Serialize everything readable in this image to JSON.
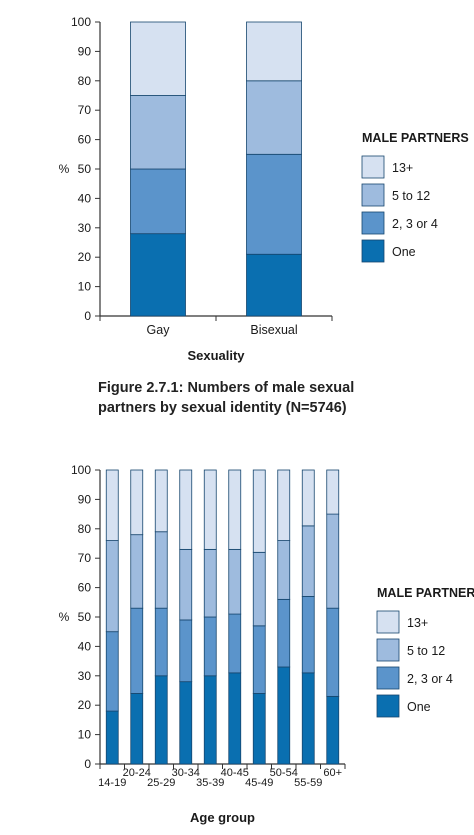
{
  "chart_data": [
    {
      "type": "bar",
      "stacked": true,
      "caption_line1": "Figure 2.7.1: Numbers of male sexual",
      "caption_line2": "partners by sexual identity (N=5746)",
      "xlabel": "Sexuality",
      "ylabel": "%",
      "ylim": [
        0,
        100
      ],
      "yticks": [
        0,
        10,
        20,
        30,
        40,
        50,
        60,
        70,
        80,
        90,
        100
      ],
      "legend_title": "MALE PARTNERS",
      "legend_position": "right",
      "categories": [
        "Gay",
        "Bisexual"
      ],
      "series": [
        {
          "name": "One",
          "color": "#0a6fb0",
          "values": [
            28,
            21
          ]
        },
        {
          "name": "2, 3 or 4",
          "color": "#5b94cb",
          "values": [
            22,
            34
          ]
        },
        {
          "name": "5 to 12",
          "color": "#9ebbde",
          "values": [
            25,
            25
          ]
        },
        {
          "name": "13+",
          "color": "#d6e1f1",
          "values": [
            25,
            20
          ]
        }
      ]
    },
    {
      "type": "bar",
      "stacked": true,
      "xlabel": "Age group",
      "ylabel": "%",
      "ylim": [
        0,
        100
      ],
      "yticks": [
        0,
        10,
        20,
        30,
        40,
        50,
        60,
        70,
        80,
        90,
        100
      ],
      "legend_title": "MALE PARTNERS",
      "legend_position": "right",
      "categories": [
        "14-19",
        "20-24",
        "25-29",
        "30-34",
        "35-39",
        "40-45",
        "45-49",
        "50-54",
        "55-59",
        "60+"
      ],
      "series": [
        {
          "name": "One",
          "color": "#0a6fb0",
          "values": [
            18,
            24,
            30,
            28,
            30,
            31,
            24,
            33,
            31,
            23
          ]
        },
        {
          "name": "2, 3 or 4",
          "color": "#5b94cb",
          "values": [
            27,
            29,
            23,
            21,
            20,
            20,
            23,
            23,
            26,
            30
          ]
        },
        {
          "name": "5 to 12",
          "color": "#9ebbde",
          "values": [
            31,
            25,
            26,
            24,
            23,
            22,
            25,
            20,
            24,
            32
          ]
        },
        {
          "name": "13+",
          "color": "#d6e1f1",
          "values": [
            24,
            22,
            21,
            27,
            27,
            27,
            28,
            24,
            19,
            15
          ]
        }
      ]
    }
  ]
}
